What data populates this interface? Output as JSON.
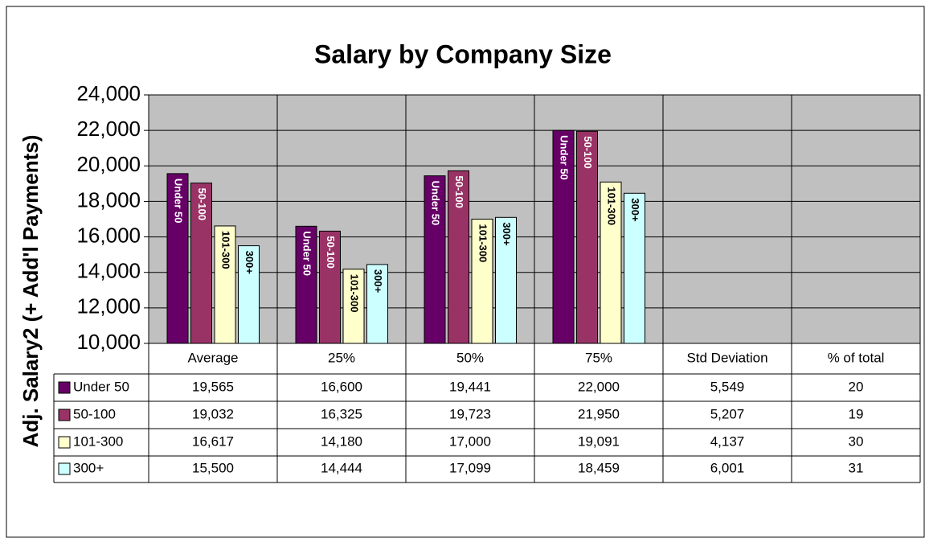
{
  "chart_data": {
    "type": "bar",
    "title": "Salary by Company Size",
    "y_label": "Adj. Salary2 (+ Add'l Payments)",
    "categories": [
      "Average",
      "25%",
      "50%",
      "75%",
      "Std Deviation",
      "% of total"
    ],
    "series": [
      {
        "name": "Under 50",
        "color": "#660066",
        "values": [
          19565,
          16600,
          19441,
          22000,
          5549,
          20
        ],
        "value_labels": [
          "19,565",
          "16,600",
          "19,441",
          "22,000",
          "5,549",
          "20"
        ]
      },
      {
        "name": "50-100",
        "color": "#993366",
        "values": [
          19032,
          16325,
          19723,
          21950,
          5207,
          19
        ],
        "value_labels": [
          "19,032",
          "16,325",
          "19,723",
          "21,950",
          "5,207",
          "19"
        ]
      },
      {
        "name": "101-300",
        "color": "#ffffcc",
        "values": [
          16617,
          14180,
          17000,
          19091,
          4137,
          30
        ],
        "value_labels": [
          "16,617",
          "14,180",
          "17,000",
          "19,091",
          "4,137",
          "30"
        ]
      },
      {
        "name": "300+",
        "color": "#ccffff",
        "values": [
          15500,
          14444,
          17099,
          18459,
          6001,
          31
        ],
        "value_labels": [
          "15,500",
          "14,444",
          "17,099",
          "18,459",
          "6,001",
          "31"
        ]
      }
    ],
    "ylim": [
      10000,
      24000
    ],
    "yticks": [
      {
        "value": 10000,
        "label": "10,000"
      },
      {
        "value": 12000,
        "label": "12,000"
      },
      {
        "value": 14000,
        "label": "14,000"
      },
      {
        "value": 16000,
        "label": "16,000"
      },
      {
        "value": 18000,
        "label": "18,000"
      },
      {
        "value": 20000,
        "label": "20,000"
      },
      {
        "value": 22000,
        "label": "22,000"
      },
      {
        "value": 24000,
        "label": "24,000"
      }
    ],
    "grid": true,
    "plot_background": "#c0c0c0"
  }
}
